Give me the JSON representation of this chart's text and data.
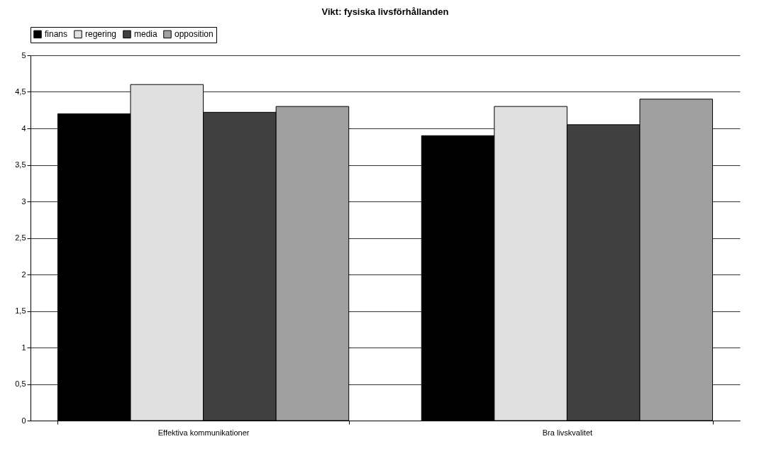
{
  "chart_data": {
    "type": "bar",
    "title": "Vikt: fysiska livsförhållanden",
    "categories": [
      "Effektiva kommunikationer",
      "Bra livskvalitet"
    ],
    "series": [
      {
        "name": "finans",
        "color": "#000000",
        "values": [
          4.2,
          3.9
        ]
      },
      {
        "name": "regering",
        "color": "#e0e0e0",
        "values": [
          4.6,
          4.3
        ]
      },
      {
        "name": "media",
        "color": "#404040",
        "values": [
          4.22,
          4.05
        ]
      },
      {
        "name": "opposition",
        "color": "#a0a0a0",
        "values": [
          4.3,
          4.4
        ]
      }
    ],
    "ylim": [
      0,
      5
    ],
    "yticks": [
      0,
      {
        "value": 0.5,
        "label": "0,5"
      },
      1,
      {
        "value": 1.5,
        "label": "1,5"
      },
      2,
      {
        "value": 2.5,
        "label": "2,5"
      },
      3,
      {
        "value": 3.5,
        "label": "3,5"
      },
      4,
      {
        "value": 4.5,
        "label": "4,5"
      },
      5
    ],
    "grid": "y",
    "legend": "top"
  }
}
